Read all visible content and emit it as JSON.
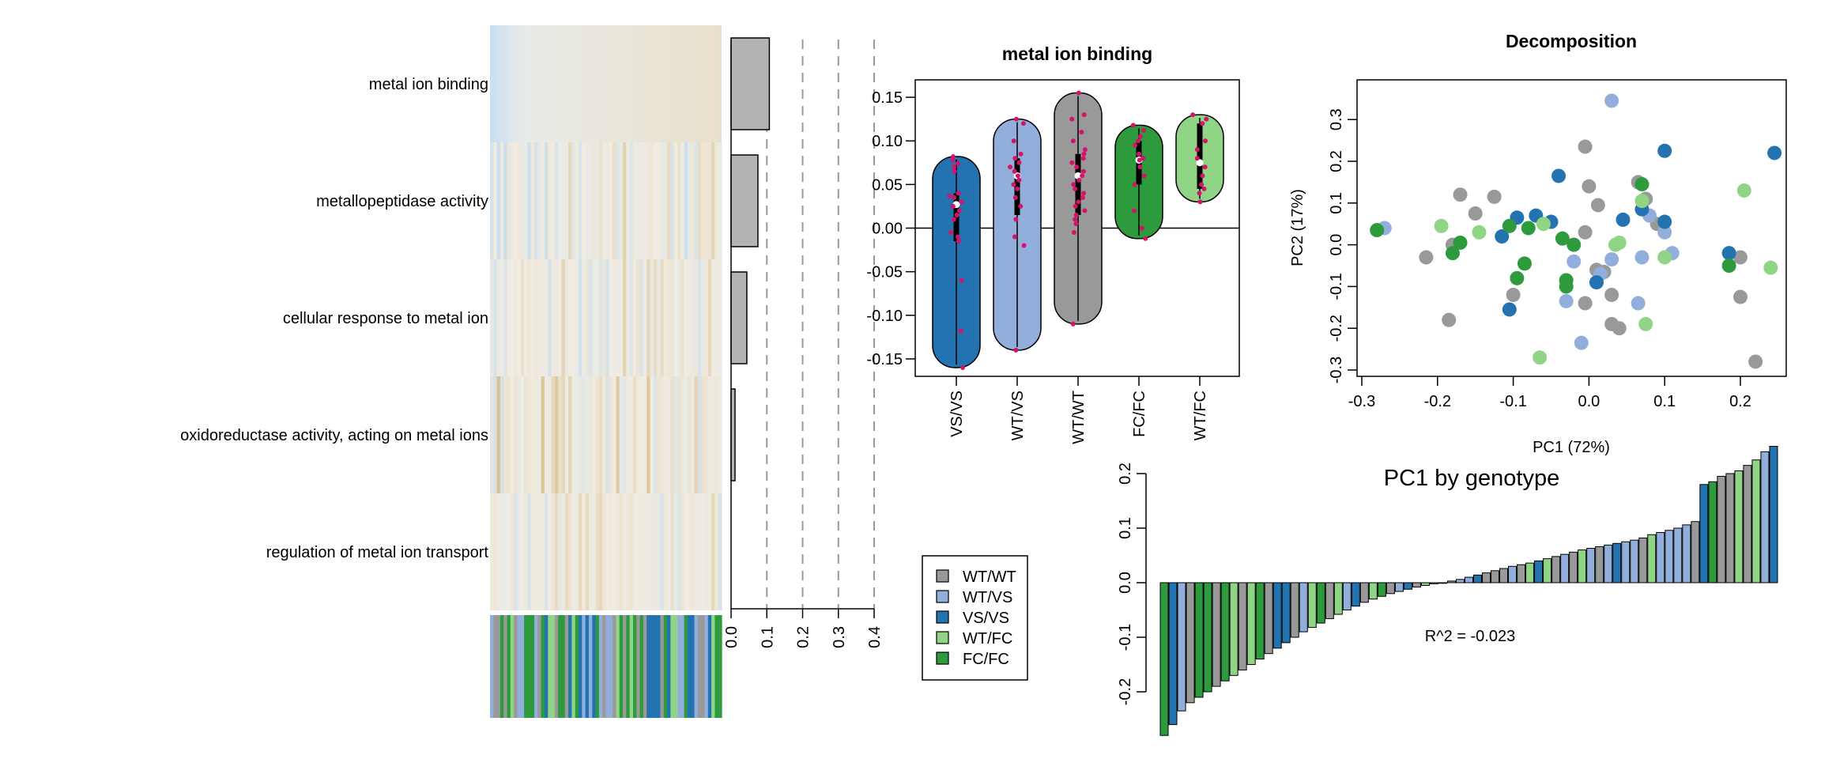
{
  "palette": {
    "WT/WT": "#999999",
    "WT/VS": "#92aedb",
    "VS/VS": "#2373b0",
    "WT/FC": "#90d585",
    "FC/FC": "#2e9a3e",
    "heat_low": "#c3dbef",
    "heat_mid": "#f0ece2",
    "heat_high": "#d8bd85",
    "bar_fill": "#b3b3b3",
    "violin_points": "#d6136a"
  },
  "chart_data": [
    {
      "id": "heatmap",
      "type": "heatmap",
      "row_labels": [
        "metal ion binding",
        "metallopeptidase activity",
        "cellular response to metal ion",
        "oxidoreductase activity, acting on metal ions",
        "regulation of metal ion transport"
      ],
      "n_samples": 68,
      "annotation_legend_ref": "genotype_legend"
    },
    {
      "id": "term_bars",
      "type": "bar",
      "orientation": "horizontal",
      "categories": [
        "metal ion binding",
        "metallopeptidase activity",
        "cellular response to metal ion",
        "oxidoreductase activity, acting on metal ions",
        "regulation of metal ion transport"
      ],
      "values": [
        0.107,
        0.075,
        0.044,
        0.011,
        0.0
      ],
      "xlim": [
        0,
        0.4
      ],
      "xticks": [
        "0.0",
        "0.1",
        "0.2",
        "0.3",
        "0.4"
      ],
      "grid": "dashed vertical"
    },
    {
      "id": "violin",
      "type": "violin",
      "title": "metal ion binding",
      "ylim": [
        -0.17,
        0.17
      ],
      "yticks": [
        "0.15",
        "0.10",
        "0.05",
        "0.00",
        "-0.05",
        "-0.10",
        "-0.15"
      ],
      "groups": [
        {
          "name": "VS/VS",
          "min": -0.16,
          "max": 0.082,
          "q1": -0.015,
          "median": 0.027,
          "q3": 0.04,
          "points": [
            0.082,
            0.078,
            0.074,
            0.07,
            0.065,
            0.04,
            0.037,
            0.035,
            0.03,
            0.025,
            0.02,
            0.015,
            0.01,
            -0.005,
            -0.01,
            -0.015,
            -0.06,
            -0.118,
            -0.16
          ]
        },
        {
          "name": "WT/VS",
          "min": -0.14,
          "max": 0.125,
          "q1": 0.015,
          "median": 0.06,
          "q3": 0.08,
          "points": [
            0.125,
            0.12,
            0.1,
            0.085,
            0.08,
            0.075,
            0.07,
            0.065,
            0.06,
            0.055,
            0.05,
            0.045,
            0.035,
            0.025,
            0.01,
            -0.01,
            -0.02,
            -0.14
          ]
        },
        {
          "name": "WT/WT",
          "min": -0.11,
          "max": 0.155,
          "q1": 0.015,
          "median": 0.06,
          "q3": 0.085,
          "points": [
            0.155,
            0.13,
            0.125,
            0.11,
            0.1,
            0.09,
            0.085,
            0.08,
            0.075,
            0.07,
            0.065,
            0.06,
            0.055,
            0.05,
            0.045,
            0.04,
            0.035,
            0.03,
            0.025,
            0.02,
            0.015,
            0.01,
            0.005,
            -0.005,
            -0.11
          ]
        },
        {
          "name": "FC/FC",
          "min": -0.012,
          "max": 0.118,
          "q1": 0.05,
          "median": 0.078,
          "q3": 0.1,
          "points": [
            0.118,
            0.112,
            0.105,
            0.1,
            0.095,
            0.085,
            0.08,
            0.078,
            0.07,
            0.06,
            0.05,
            0.02,
            0.0,
            -0.012
          ]
        },
        {
          "name": "WT/FC",
          "min": 0.03,
          "max": 0.13,
          "q1": 0.045,
          "median": 0.075,
          "q3": 0.12,
          "points": [
            0.13,
            0.125,
            0.12,
            0.1,
            0.09,
            0.08,
            0.07,
            0.06,
            0.05,
            0.045,
            0.04,
            0.03
          ]
        }
      ]
    },
    {
      "id": "pca",
      "type": "scatter",
      "title": "Decomposition",
      "xlabel": "PC1 (72%)",
      "ylabel": "PC2 (17%)",
      "xlim": [
        -0.3,
        0.265
      ],
      "ylim": [
        -0.3,
        0.37
      ],
      "xticks": [
        "-0.3",
        "-0.2",
        "-0.1",
        "0.0",
        "0.1",
        "0.2"
      ],
      "yticks": [
        "-0.3",
        "-0.2",
        "-0.1",
        "0.0",
        "0.1",
        "0.2",
        "0.3"
      ],
      "series": [
        {
          "name": "WT/WT",
          "points": [
            [
              -0.005,
              0.235
            ],
            [
              -0.17,
              0.12
            ],
            [
              -0.125,
              0.115
            ],
            [
              -0.15,
              0.075
            ],
            [
              0.0,
              0.14
            ],
            [
              0.065,
              0.15
            ],
            [
              0.075,
              0.11
            ],
            [
              0.012,
              0.095
            ],
            [
              -0.18,
              0.0
            ],
            [
              -0.215,
              -0.03
            ],
            [
              -0.005,
              0.03
            ],
            [
              0.01,
              -0.06
            ],
            [
              0.02,
              -0.065
            ],
            [
              -0.1,
              -0.12
            ],
            [
              0.03,
              -0.12
            ],
            [
              -0.005,
              -0.14
            ],
            [
              -0.185,
              -0.18
            ],
            [
              0.03,
              -0.19
            ],
            [
              0.04,
              -0.2
            ],
            [
              0.2,
              -0.03
            ],
            [
              0.2,
              -0.125
            ],
            [
              0.22,
              -0.28
            ],
            [
              0.09,
              0.05
            ]
          ]
        },
        {
          "name": "WT/VS",
          "points": [
            [
              0.03,
              0.345
            ],
            [
              -0.27,
              0.04
            ],
            [
              -0.02,
              -0.04
            ],
            [
              0.03,
              -0.035
            ],
            [
              0.08,
              0.07
            ],
            [
              0.1,
              0.03
            ],
            [
              0.11,
              -0.02
            ],
            [
              0.07,
              -0.03
            ],
            [
              0.065,
              -0.14
            ],
            [
              -0.03,
              -0.135
            ],
            [
              -0.01,
              -0.235
            ],
            [
              0.015,
              -0.07
            ]
          ]
        },
        {
          "name": "VS/VS",
          "points": [
            [
              -0.04,
              0.165
            ],
            [
              -0.07,
              0.07
            ],
            [
              -0.095,
              0.065
            ],
            [
              0.045,
              0.06
            ],
            [
              -0.05,
              0.055
            ],
            [
              0.1,
              0.225
            ],
            [
              0.245,
              0.22
            ],
            [
              0.07,
              0.085
            ],
            [
              0.1,
              0.055
            ],
            [
              -0.105,
              -0.155
            ],
            [
              0.01,
              -0.09
            ],
            [
              0.185,
              -0.02
            ],
            [
              -0.115,
              0.02
            ]
          ]
        },
        {
          "name": "WT/FC",
          "points": [
            [
              -0.195,
              0.045
            ],
            [
              -0.145,
              0.03
            ],
            [
              -0.06,
              0.05
            ],
            [
              0.04,
              0.005
            ],
            [
              0.035,
              0.0
            ],
            [
              0.07,
              0.105
            ],
            [
              0.1,
              -0.03
            ],
            [
              0.205,
              0.13
            ],
            [
              0.24,
              -0.055
            ],
            [
              0.075,
              -0.19
            ],
            [
              -0.065,
              -0.27
            ]
          ]
        },
        {
          "name": "FC/FC",
          "points": [
            [
              -0.28,
              0.035
            ],
            [
              -0.17,
              0.005
            ],
            [
              -0.18,
              -0.02
            ],
            [
              -0.105,
              0.045
            ],
            [
              -0.08,
              0.04
            ],
            [
              -0.035,
              0.015
            ],
            [
              -0.02,
              0.0
            ],
            [
              -0.085,
              -0.045
            ],
            [
              -0.095,
              -0.08
            ],
            [
              -0.03,
              -0.085
            ],
            [
              -0.03,
              -0.1
            ],
            [
              0.07,
              0.145
            ],
            [
              0.185,
              -0.05
            ]
          ]
        }
      ]
    },
    {
      "id": "pc1_bars",
      "type": "bar",
      "title": "PC1 by genotype",
      "annotation": "R^2 = -0.023",
      "ylim": [
        -0.28,
        0.25
      ],
      "yticks": [
        "0.2",
        "0.1",
        "0.0",
        "-0.1",
        "-0.2"
      ],
      "values": [
        -0.28,
        -0.26,
        -0.235,
        -0.22,
        -0.21,
        -0.2,
        -0.19,
        -0.18,
        -0.17,
        -0.16,
        -0.15,
        -0.14,
        -0.13,
        -0.12,
        -0.11,
        -0.1,
        -0.09,
        -0.082,
        -0.074,
        -0.066,
        -0.058,
        -0.05,
        -0.043,
        -0.036,
        -0.03,
        -0.025,
        -0.02,
        -0.016,
        -0.012,
        -0.008,
        -0.005,
        -0.002,
        0.0,
        0.003,
        0.006,
        0.01,
        0.014,
        0.018,
        0.022,
        0.026,
        0.03,
        0.033,
        0.036,
        0.04,
        0.044,
        0.048,
        0.052,
        0.056,
        0.06,
        0.063,
        0.066,
        0.069,
        0.072,
        0.075,
        0.078,
        0.082,
        0.088,
        0.092,
        0.096,
        0.1,
        0.106,
        0.112,
        0.18,
        0.185,
        0.195,
        0.2,
        0.205,
        0.215,
        0.225,
        0.24,
        0.25
      ],
      "groups": [
        "FC/FC",
        "VS/VS",
        "WT/VS",
        "WT/WT",
        "FC/FC",
        "FC/FC",
        "WT/WT",
        "FC/FC",
        "WT/FC",
        "WT/WT",
        "WT/FC",
        "FC/FC",
        "WT/WT",
        "VS/VS",
        "VS/VS",
        "WT/WT",
        "WT/VS",
        "WT/FC",
        "FC/FC",
        "WT/WT",
        "WT/FC",
        "WT/VS",
        "VS/VS",
        "WT/WT",
        "WT/FC",
        "FC/FC",
        "WT/WT",
        "WT/VS",
        "VS/VS",
        "WT/WT",
        "WT/FC",
        "WT/WT",
        "WT/WT",
        "WT/WT",
        "WT/VS",
        "WT/VS",
        "VS/VS",
        "WT/WT",
        "WT/WT",
        "WT/WT",
        "WT/VS",
        "WT/WT",
        "WT/FC",
        "VS/VS",
        "WT/FC",
        "WT/WT",
        "WT/VS",
        "WT/WT",
        "WT/FC",
        "WT/VS",
        "WT/WT",
        "WT/VS",
        "VS/VS",
        "WT/VS",
        "WT/VS",
        "WT/WT",
        "WT/FC",
        "WT/VS",
        "WT/VS",
        "WT/VS",
        "WT/VS",
        "WT/WT",
        "VS/VS",
        "FC/FC",
        "WT/WT",
        "WT/WT",
        "WT/FC",
        "WT/WT",
        "WT/FC",
        "WT/VS",
        "VS/VS"
      ]
    },
    {
      "id": "genotype_legend",
      "type": "legend",
      "entries": [
        "WT/WT",
        "WT/VS",
        "VS/VS",
        "WT/FC",
        "FC/FC"
      ]
    }
  ]
}
